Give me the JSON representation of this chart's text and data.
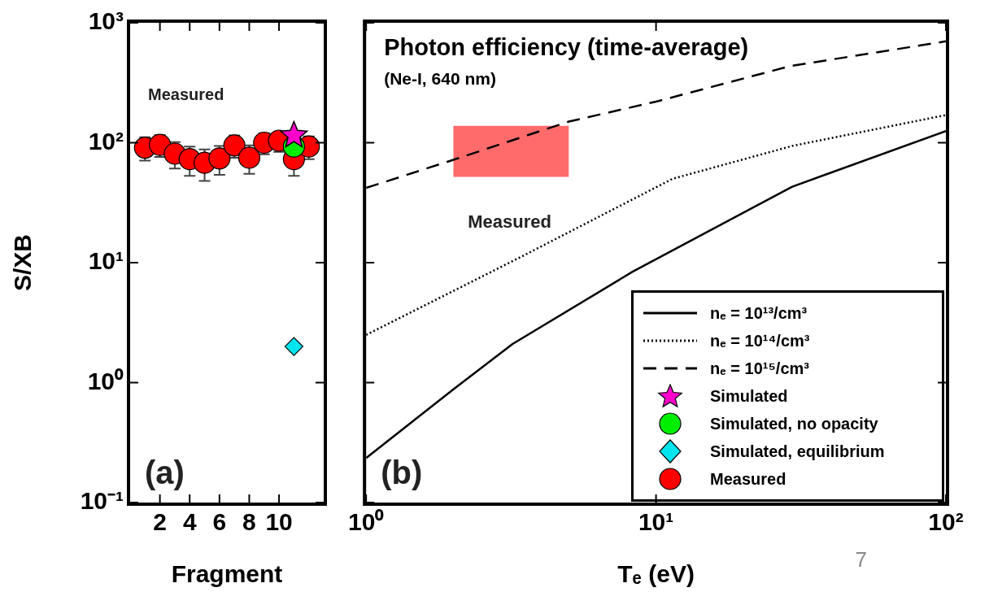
{
  "chart_data": [
    {
      "type": "scatter",
      "legend": "bottom right",
      "xlabel": "Fragment",
      "ylabel": "S/XB",
      "log": "y",
      "xlim": [
        0,
        13
      ],
      "xticks": [
        2,
        4,
        6,
        8,
        10
      ],
      "ylim": [
        0.1,
        1000
      ],
      "yticks": [
        {
          "value": 0.1,
          "label": "10⁻¹"
        },
        {
          "value": 1,
          "label": "10⁰"
        },
        {
          "value": 10,
          "label": "10¹"
        },
        {
          "value": 100,
          "label": "10²"
        },
        {
          "value": 1000,
          "label": "10³"
        }
      ],
      "annotations": [
        "Measured",
        "(a)"
      ],
      "series": [
        {
          "name": "Simulated",
          "color": "#ff00cc",
          "marker": "star",
          "x": [
            11
          ],
          "values": [
            115
          ]
        },
        {
          "name": "Simulated, no opacity",
          "color": "#00ee00",
          "marker": "circle",
          "x": [
            11
          ],
          "values": [
            93
          ]
        },
        {
          "name": "Simulated, equilibrium",
          "color": "#00e5ee",
          "marker": "diamond",
          "x": [
            11
          ],
          "values": [
            2.0
          ]
        },
        {
          "name": "Measured",
          "color": "#ff0000",
          "marker": "circle",
          "x": [
            1,
            2,
            3,
            4,
            5,
            6,
            7,
            8,
            9,
            10,
            11,
            12
          ],
          "values": [
            91,
            96,
            81,
            73,
            68,
            74,
            95,
            75,
            100,
            104,
            73,
            93
          ],
          "errors": [
            20,
            20,
            20,
            20,
            20,
            20,
            20,
            20,
            20,
            20,
            20,
            20
          ]
        }
      ]
    },
    {
      "type": "line",
      "title": "Photon efficiency (time-average)",
      "subtitle": "(Ne-I, 640 nm)",
      "xlabel": "Tₑ (eV)",
      "log": "xy",
      "tick_labels": "x",
      "legend": "bottom right",
      "xlim": [
        1,
        100
      ],
      "xticks": [
        {
          "value": 1,
          "label": "10⁰"
        },
        {
          "value": 10,
          "label": "10¹"
        },
        {
          "value": 100,
          "label": "10²"
        }
      ],
      "ylim": [
        0.1,
        1000
      ],
      "yticks": [
        0.1,
        1,
        10,
        100,
        1000
      ],
      "annotations": [
        "(b)",
        "7",
        "Measured"
      ],
      "series": [
        {
          "name": "nₑ = 10¹³/cm³",
          "color": "#000000",
          "line_style": "solid",
          "x": [
            1,
            2,
            3.2,
            8.3,
            29.5,
            100
          ],
          "values": [
            0.235,
            0.88,
            2.1,
            8.4,
            43,
            125
          ]
        },
        {
          "name": "nₑ = 10¹⁴/cm³",
          "color": "#000000",
          "line_style": "dotted",
          "x": [
            1,
            3.5,
            11.4,
            29.5,
            100
          ],
          "values": [
            2.5,
            11.5,
            50,
            94,
            170
          ]
        },
        {
          "name": "nₑ = 10¹⁵/cm³",
          "color": "#000000",
          "line_style": "dashed",
          "x": [
            1,
            2,
            5,
            10,
            29,
            100
          ],
          "values": [
            42,
            72,
            150,
            220,
            435,
            700
          ]
        },
        {
          "color": "#ff6b6b",
          "x": [
            2,
            5
          ],
          "values": [
            null,
            null
          ],
          "lower": [
            52,
            52
          ],
          "upper": [
            138,
            138
          ]
        }
      ]
    }
  ]
}
